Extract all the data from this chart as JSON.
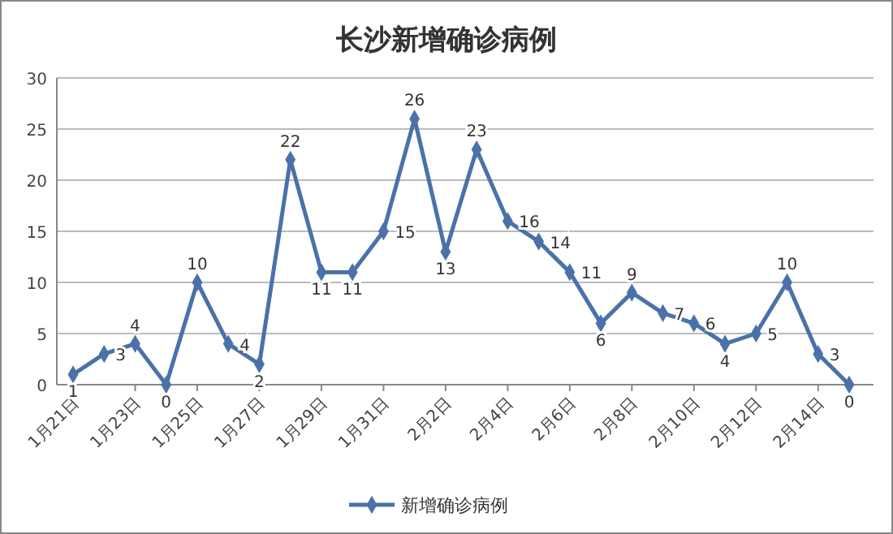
{
  "chart_data": {
    "type": "line",
    "title": "长沙新增确诊病例",
    "categories": [
      "1月21日",
      null,
      "1月23日",
      null,
      "1月25日",
      null,
      "1月27日",
      null,
      "1月29日",
      null,
      "1月31日",
      null,
      "2月2日",
      null,
      "2月4日",
      null,
      "2月6日",
      null,
      "2月8日",
      null,
      "2月10日",
      null,
      "2月12日",
      null,
      "2月14日",
      null
    ],
    "series": [
      {
        "name": "新增确诊病例",
        "color": "#4a72a8",
        "values": [
          1,
          3,
          4,
          0,
          10,
          4,
          2,
          22,
          11,
          11,
          15,
          26,
          13,
          23,
          16,
          14,
          11,
          6,
          9,
          7,
          6,
          4,
          5,
          10,
          3,
          0
        ]
      }
    ],
    "ylim": [
      0,
      30
    ],
    "yticks": [
      0,
      5,
      10,
      15,
      20,
      25,
      30
    ],
    "grid": "y",
    "legend": "bottom",
    "marker": "diamond",
    "data_labels": true
  }
}
